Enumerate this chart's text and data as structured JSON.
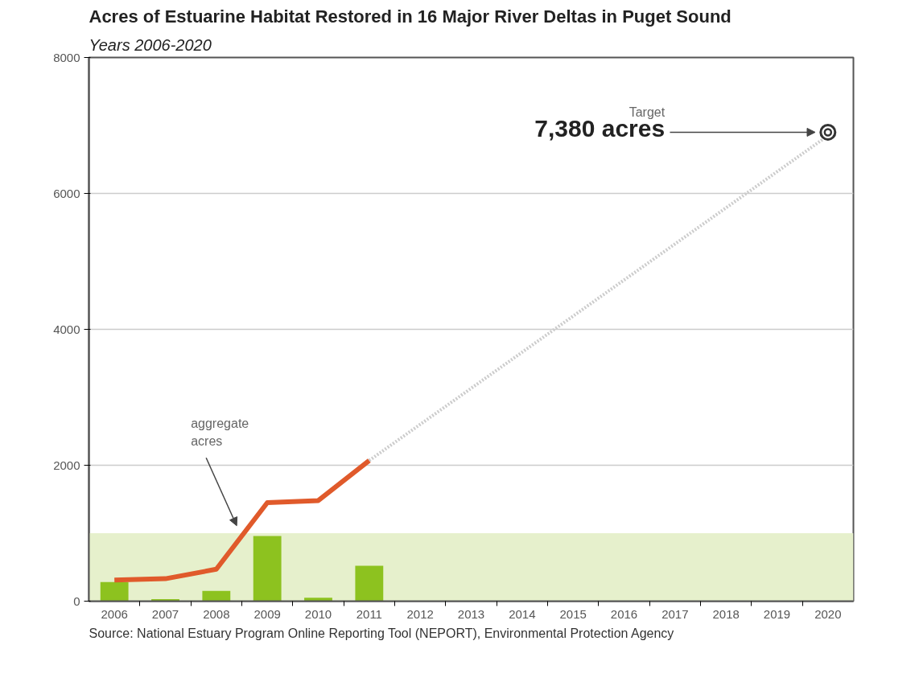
{
  "chart_data": {
    "type": "bar",
    "title": "Acres of Estuarine Habitat Restored in 16 Major River Deltas in Puget Sound",
    "subtitle": "Years 2006-2020",
    "categories": [
      "2006",
      "2007",
      "2008",
      "2009",
      "2010",
      "2011",
      "2012",
      "2013",
      "2014",
      "2015",
      "2016",
      "2017",
      "2018",
      "2019",
      "2020"
    ],
    "series": [
      {
        "color": "#8dc21f",
        "values": [
          280,
          30,
          150,
          960,
          50,
          520,
          null,
          null,
          null,
          null,
          null,
          null,
          null,
          null,
          null
        ]
      },
      {
        "type": "line",
        "color": "#e05a2b",
        "values": [
          310,
          330,
          470,
          1450,
          1480,
          2070,
          null,
          null,
          null,
          null,
          null,
          null,
          null,
          null,
          null
        ]
      },
      {
        "type": "line",
        "color": "#cccccc",
        "line_style": "dotted",
        "values": [
          null,
          null,
          null,
          null,
          null,
          2070,
          null,
          null,
          null,
          null,
          null,
          null,
          null,
          null,
          6850
        ]
      },
      {
        "type": "scatter",
        "color": "#333333",
        "marker": "circle",
        "values": [
          null,
          null,
          null,
          null,
          null,
          null,
          null,
          null,
          null,
          null,
          null,
          null,
          null,
          null,
          6900
        ]
      }
    ],
    "ylim": [
      0,
      8000
    ],
    "yticks": [
      0,
      2000,
      4000,
      6000,
      8000
    ],
    "grid": "y",
    "bands": [
      {
        "axis": "y",
        "from": 0,
        "to": 1000,
        "color": "#e6f0cc"
      }
    ],
    "annotations": [
      "aggregate\nacres",
      "Target\n7,380 acres",
      "Source: National Estuary Program Online Reporting Tool (NEPORT), Environmental Protection Agency"
    ]
  }
}
